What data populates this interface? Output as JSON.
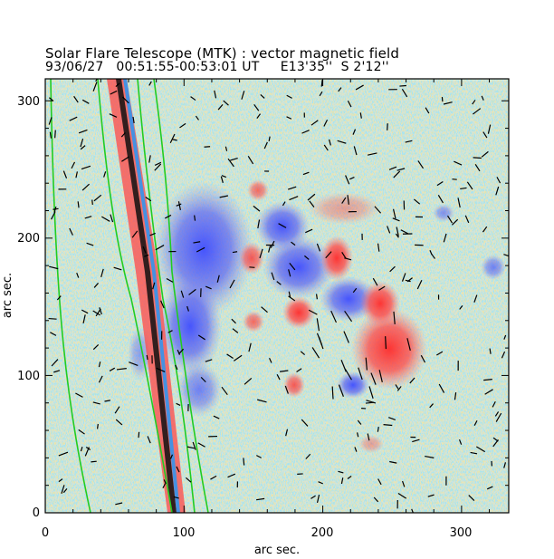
{
  "title": "Solar Flare Telescope (MTK) : vector magnetic field",
  "subtitle": "93/06/27   00:51:55-00:53:01 UT     E13'35''  S 2'12''",
  "chart_data": {
    "type": "heatmap",
    "xlabel": "arc sec.",
    "ylabel": "arc sec.",
    "xlim": [
      0,
      334
    ],
    "ylim": [
      0,
      316
    ],
    "x_ticks": [
      "0",
      "100",
      "200",
      "300"
    ],
    "y_ticks": [
      "0",
      "100",
      "200",
      "300"
    ],
    "colors": {
      "positive": "#e83a3a",
      "negative": "#3a4ae8",
      "contour": "#22cc22",
      "vector": "#000000",
      "limb_dark": "#111111",
      "limb_accent": "#1a9aff"
    }
  }
}
